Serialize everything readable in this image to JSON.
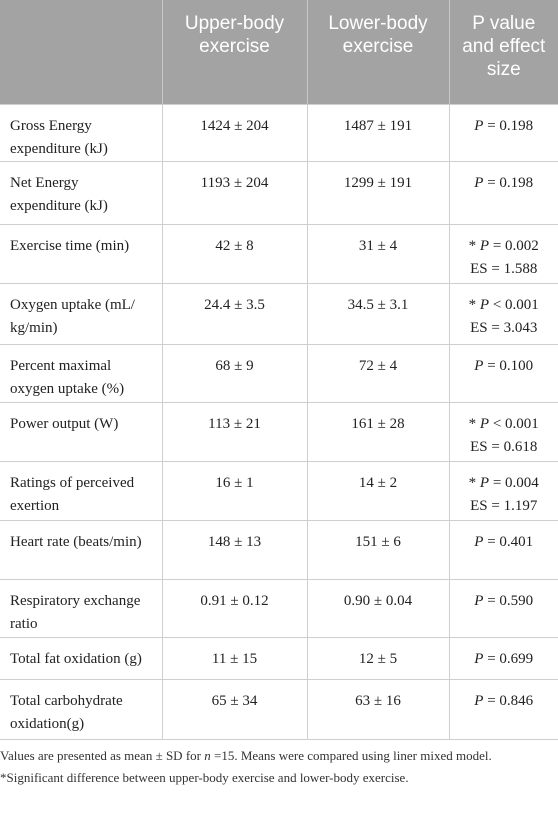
{
  "table": {
    "header": [
      "Upper-body exercise",
      "Lower-body exercise",
      "P value and effect size"
    ],
    "rows": [
      {
        "label": "Gross Energy expenditure (kJ)",
        "upper": "1424 ± 204",
        "lower": "1487 ± 191",
        "p": {
          "symbol": "P",
          "text": "= 0.198"
        }
      },
      {
        "label": "Net Energy expenditure (kJ)",
        "upper": "1193 ± 204",
        "lower": "1299 ± 191",
        "p": {
          "symbol": "P",
          "text": "= 0.198"
        }
      },
      {
        "label": "Exercise time (min)",
        "upper": "42 ± 8",
        "lower": "31 ± 4",
        "p": {
          "prefix": "*",
          "symbol": "P",
          "text": "= 0.002",
          "es": "ES = 1.588"
        }
      },
      {
        "label": "Oxygen uptake (mL/ kg/min)",
        "upper": "24.4 ± 3.5",
        "lower": "34.5 ± 3.1",
        "p": {
          "prefix": "*",
          "symbol": "P",
          "text": "< 0.001",
          "es": "ES = 3.043"
        }
      },
      {
        "label": "Percent maximal oxygen uptake (%)",
        "upper": "68 ± 9",
        "lower": "72 ± 4",
        "p": {
          "symbol": "P",
          "text": "= 0.100"
        }
      },
      {
        "label": "Power output (W)",
        "upper": "113 ± 21",
        "lower": "161 ± 28",
        "p": {
          "prefix": "*",
          "symbol": "P",
          "text": "< 0.001",
          "es": "ES = 0.618"
        }
      },
      {
        "label": "Ratings of perceived exertion",
        "upper": "16 ± 1",
        "lower": "14 ± 2",
        "p": {
          "prefix": "*",
          "symbol": "P",
          "text": "= 0.004",
          "es": "ES = 1.197"
        }
      },
      {
        "label": "Heart rate (beats/min)",
        "upper": "148 ± 13",
        "lower": "151 ± 6",
        "p": {
          "symbol": "P",
          "text": "= 0.401"
        }
      },
      {
        "label": "Respiratory exchange ratio",
        "upper": "0.91 ± 0.12",
        "lower": "0.90 ± 0.04",
        "p": {
          "symbol": "P",
          "text": "= 0.590"
        }
      },
      {
        "label": "Total fat oxidation (g)",
        "upper": "11 ± 15",
        "lower": "12 ± 5",
        "p": {
          "symbol": "P",
          "text": "= 0.699"
        }
      },
      {
        "label": "Total carbohydrate oxidation(g)",
        "upper": "65 ± 34",
        "lower": "63 ± 16",
        "p": {
          "symbol": "P",
          "text": "= 0.846"
        }
      }
    ]
  },
  "footnotes": [
    [
      "Values are presented as mean ± SD for ",
      "n",
      " =15. Means were compared using liner mixed model."
    ],
    [
      "*Significant difference between upper-body exercise and lower-body exercise."
    ]
  ]
}
